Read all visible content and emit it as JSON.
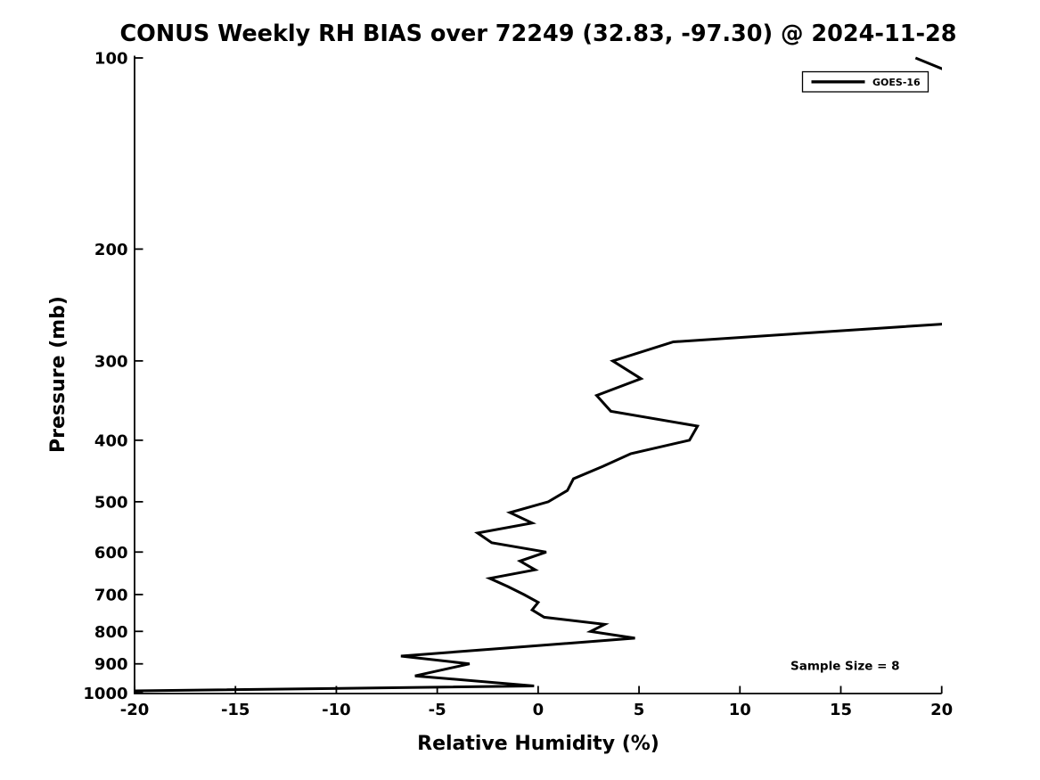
{
  "title": "CONUS Weekly RH BIAS over 72249 (32.83, -97.30) @ 2024-11-28",
  "annotations": {
    "sample_size": "Sample Size = 8"
  },
  "legend": {
    "position": "upper right",
    "entries": [
      "GOES-16"
    ]
  },
  "colors": {
    "line": "#000000",
    "text": "#000000",
    "background": "#ffffff",
    "legend_border": "#000000"
  },
  "chart_data": {
    "type": "line",
    "title": "CONUS Weekly RH BIAS over 72249 (32.83, -97.30) @ 2024-11-28",
    "xlabel": "Relative Humidity (%)",
    "ylabel": "Pressure (mb)",
    "xlim": [
      -20,
      20
    ],
    "plim": [
      100,
      1000
    ],
    "y_scale": "log",
    "y_inverted": true,
    "grid": false,
    "xticks": [
      -20,
      -15,
      -10,
      -5,
      0,
      5,
      10,
      15,
      20
    ],
    "yticks": [
      100,
      200,
      300,
      400,
      500,
      600,
      700,
      800,
      900,
      1000
    ],
    "sample_size": 8,
    "series": [
      {
        "name": "GOES-16",
        "color": "#000000",
        "points_format": "[rh_bias_percent, pressure_mb]; values beyond xlim are off-scale (clipped at axes)",
        "points": [
          [
            18.7,
            100
          ],
          [
            21.9,
            110
          ],
          [
            26,
            125
          ],
          [
            28,
            150
          ],
          [
            28,
            175
          ],
          [
            27,
            200
          ],
          [
            26,
            225
          ],
          [
            24,
            250
          ],
          [
            22,
            260
          ],
          [
            6.7,
            280
          ],
          [
            3.7,
            300
          ],
          [
            5.1,
            320
          ],
          [
            2.9,
            340
          ],
          [
            3.6,
            360
          ],
          [
            7.9,
            380
          ],
          [
            7.5,
            400
          ],
          [
            4.6,
            420
          ],
          [
            3.2,
            440
          ],
          [
            1.75,
            460
          ],
          [
            1.45,
            480
          ],
          [
            0.5,
            500
          ],
          [
            -1.4,
            520
          ],
          [
            -0.3,
            540
          ],
          [
            -3.0,
            560
          ],
          [
            -2.3,
            580
          ],
          [
            0.4,
            600
          ],
          [
            -0.9,
            620
          ],
          [
            -0.15,
            640
          ],
          [
            -2.4,
            660
          ],
          [
            -1.5,
            680
          ],
          [
            -0.7,
            700
          ],
          [
            0.0,
            720
          ],
          [
            -0.3,
            740
          ],
          [
            0.3,
            760
          ],
          [
            3.3,
            780
          ],
          [
            2.6,
            800
          ],
          [
            4.8,
            820
          ],
          [
            -1.6,
            850
          ],
          [
            -6.8,
            875
          ],
          [
            -3.4,
            900
          ],
          [
            -6.1,
            940
          ],
          [
            -0.2,
            975
          ],
          [
            -28,
            1000
          ]
        ]
      }
    ]
  }
}
